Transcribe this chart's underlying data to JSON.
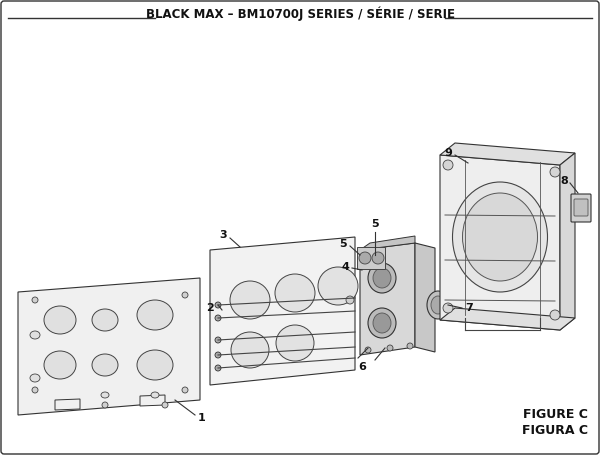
{
  "title": "BLACK MAX – BM10700J SERIES / SÉRIE / SERIE",
  "figure_label": "FIGURE C",
  "figura_label": "FIGURA C",
  "bg_color": "#ffffff",
  "line_color": "#222222",
  "title_fontsize": 8.5,
  "figure_label_fontsize": 9
}
